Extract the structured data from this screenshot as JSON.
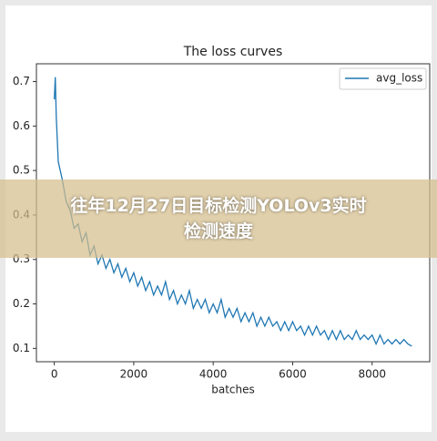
{
  "chart_data": {
    "type": "line",
    "title": "The loss curves",
    "x_label": "batches",
    "x": [
      0,
      25,
      50,
      75,
      100,
      200,
      300,
      400,
      500,
      600,
      700,
      800,
      900,
      1000,
      1100,
      1200,
      1300,
      1400,
      1500,
      1600,
      1700,
      1800,
      1900,
      2000,
      2100,
      2200,
      2300,
      2400,
      2500,
      2600,
      2700,
      2800,
      2900,
      3000,
      3100,
      3200,
      3300,
      3400,
      3500,
      3600,
      3700,
      3800,
      3900,
      4000,
      4100,
      4200,
      4300,
      4400,
      4500,
      4600,
      4700,
      4800,
      4900,
      5000,
      5100,
      5200,
      5300,
      5400,
      5500,
      5600,
      5700,
      5800,
      5900,
      6000,
      6100,
      6200,
      6300,
      6400,
      6500,
      6600,
      6700,
      6800,
      6900,
      7000,
      7100,
      7200,
      7300,
      7400,
      7500,
      7600,
      7700,
      7800,
      7900,
      8000,
      8100,
      8200,
      8300,
      8400,
      8500,
      8600,
      8700,
      8800,
      8900,
      9000
    ],
    "series": [
      {
        "name": "avg_loss",
        "color": "#1f77b4",
        "values": [
          0.66,
          0.71,
          0.62,
          0.57,
          0.52,
          0.48,
          0.43,
          0.41,
          0.37,
          0.38,
          0.34,
          0.36,
          0.31,
          0.33,
          0.29,
          0.31,
          0.28,
          0.3,
          0.27,
          0.29,
          0.26,
          0.28,
          0.25,
          0.27,
          0.24,
          0.26,
          0.23,
          0.25,
          0.22,
          0.24,
          0.22,
          0.25,
          0.21,
          0.23,
          0.2,
          0.22,
          0.2,
          0.23,
          0.19,
          0.21,
          0.19,
          0.21,
          0.18,
          0.2,
          0.18,
          0.21,
          0.17,
          0.19,
          0.17,
          0.19,
          0.16,
          0.18,
          0.16,
          0.18,
          0.15,
          0.17,
          0.15,
          0.17,
          0.15,
          0.16,
          0.14,
          0.16,
          0.14,
          0.16,
          0.14,
          0.15,
          0.13,
          0.15,
          0.13,
          0.15,
          0.13,
          0.14,
          0.12,
          0.14,
          0.12,
          0.14,
          0.12,
          0.13,
          0.12,
          0.14,
          0.12,
          0.13,
          0.12,
          0.13,
          0.11,
          0.13,
          0.11,
          0.12,
          0.11,
          0.12,
          0.11,
          0.12,
          0.11,
          0.105
        ]
      }
    ],
    "xlim": [
      -450,
      9450
    ],
    "xticks": [
      0,
      2000,
      4000,
      6000,
      8000
    ],
    "ylim": [
      0.07,
      0.74
    ],
    "yticks": [
      0.1,
      0.2,
      0.3,
      0.4,
      0.5,
      0.6,
      0.7
    ],
    "legend": "upper right"
  },
  "banner": {
    "lines": [
      "往年12月27日目标检测YOLOv3实时",
      "检测速度"
    ]
  }
}
